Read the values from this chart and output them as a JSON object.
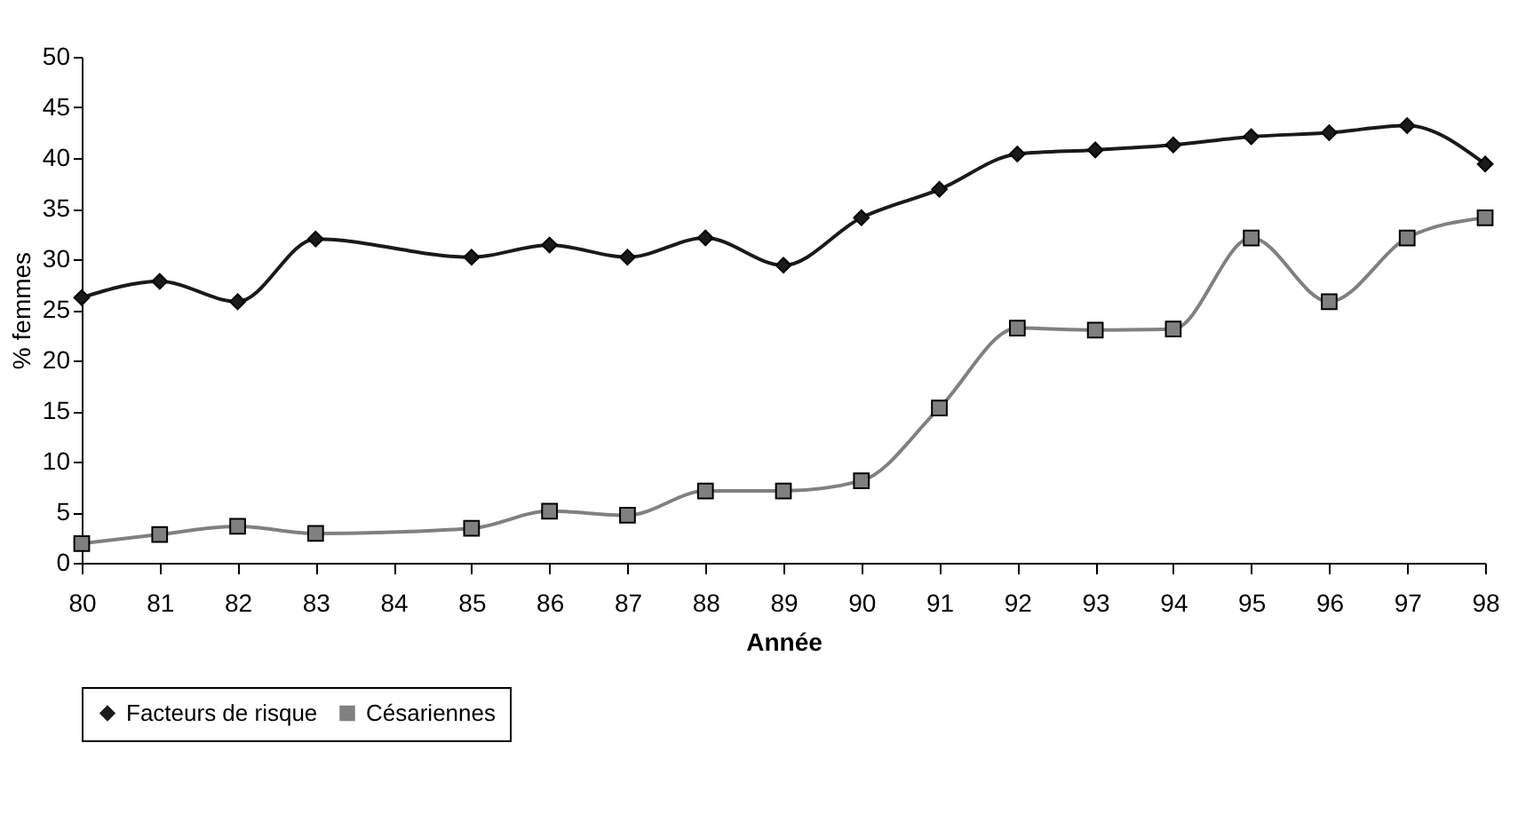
{
  "chart_data": {
    "type": "line",
    "xlabel": "Année",
    "ylabel": "% femmes",
    "x": [
      80,
      81,
      82,
      83,
      85,
      86,
      87,
      88,
      89,
      90,
      91,
      92,
      93,
      94,
      95,
      96,
      97,
      98
    ],
    "xlim": [
      80,
      98
    ],
    "xticks": [
      80,
      81,
      82,
      83,
      84,
      85,
      86,
      87,
      88,
      89,
      90,
      91,
      92,
      93,
      94,
      95,
      96,
      97,
      98
    ],
    "ylim": [
      0,
      50
    ],
    "yticks": [
      0,
      5,
      10,
      15,
      20,
      25,
      30,
      35,
      40,
      45,
      50
    ],
    "grid": false,
    "legend": "bottom",
    "series": [
      {
        "name": "Facteurs de risque",
        "color": "#1a1a1a",
        "marker": "diamond",
        "values": [
          26.2,
          27.8,
          25.8,
          32.0,
          30.2,
          31.4,
          30.2,
          32.1,
          29.4,
          34.1,
          36.9,
          40.4,
          40.8,
          41.3,
          42.1,
          42.5,
          43.2,
          39.4
        ]
      },
      {
        "name": "Césariennes",
        "color": "#808080",
        "marker": "square",
        "values": [
          1.9,
          2.8,
          3.6,
          2.9,
          3.4,
          5.1,
          4.7,
          7.1,
          7.1,
          8.1,
          15.3,
          23.2,
          23.0,
          23.1,
          32.1,
          25.8,
          32.1,
          34.1
        ]
      }
    ]
  }
}
